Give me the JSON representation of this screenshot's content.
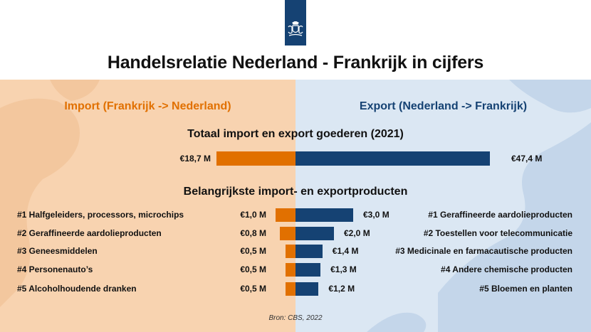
{
  "title": "Handelsrelatie Nederland - Frankrijk in cijfers",
  "colors": {
    "import": "#e17000",
    "export": "#154273",
    "import_bg": "#f8d3b0",
    "export_bg": "#dbe7f3"
  },
  "import_heading": "Import (Frankrijk -> Nederland)",
  "export_heading": "Export (Nederland -> Frankrijk)",
  "source": "Bron: CBS, 2022",
  "chart_data": [
    {
      "type": "bar",
      "title": "Totaal import en export goederen (2021)",
      "series": [
        {
          "name": "Import",
          "values": [
            18.7
          ],
          "labels": [
            "€18,7 M"
          ]
        },
        {
          "name": "Export",
          "values": [
            47.4
          ],
          "labels": [
            "€47,4 M"
          ]
        }
      ]
    },
    {
      "type": "bar",
      "title": "Belangrijkste import- en exportproducten",
      "import": [
        {
          "rank": "#1",
          "product": "Halfgeleiders, processors, microchips",
          "value": 1.0,
          "label": "€1,0 M"
        },
        {
          "rank": "#2",
          "product": "Geraffineerde aardolieproducten",
          "value": 0.8,
          "label": "€0,8 M"
        },
        {
          "rank": "#3",
          "product": "Geneesmiddelen",
          "value": 0.5,
          "label": "€0,5 M"
        },
        {
          "rank": "#4",
          "product": "Personenauto’s",
          "value": 0.5,
          "label": "€0,5 M"
        },
        {
          "rank": "#5",
          "product": "Alcoholhoudende dranken",
          "value": 0.5,
          "label": "€0,5 M"
        }
      ],
      "export": [
        {
          "rank": "#1",
          "product": "Geraffineerde aardolieproducten",
          "value": 3.0,
          "label": "€3,0 M"
        },
        {
          "rank": "#2",
          "product": "Toestellen voor telecommunicatie",
          "value": 2.0,
          "label": "€2,0 M"
        },
        {
          "rank": "#3",
          "product": "Medicinale en farmacautische producten",
          "value": 1.4,
          "label": "€1,4 M"
        },
        {
          "rank": "#4",
          "product": "Andere chemische producten",
          "value": 1.3,
          "label": "€1,3 M"
        },
        {
          "rank": "#5",
          "product": "Bloemen en planten",
          "value": 1.2,
          "label": "€1,2 M"
        }
      ]
    }
  ]
}
